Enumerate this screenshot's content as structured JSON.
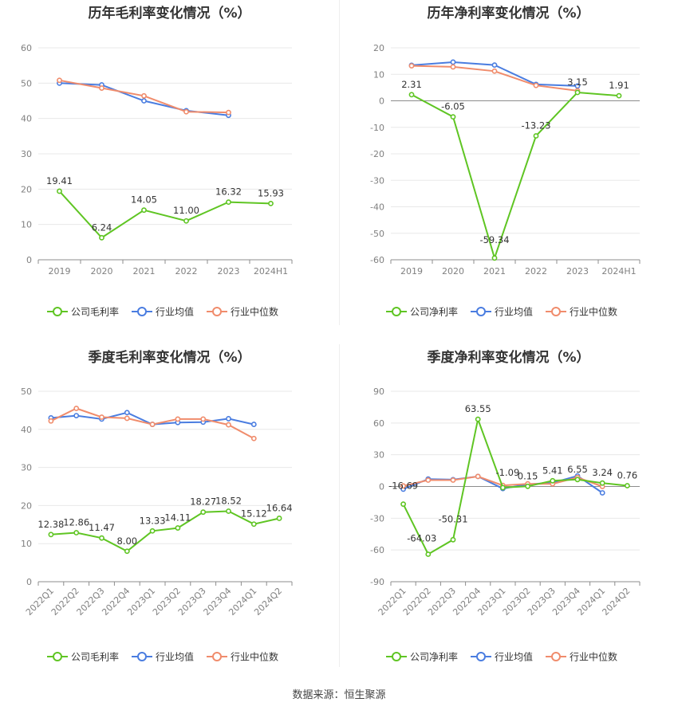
{
  "source_note": "数据来源：恒生聚源",
  "colors": {
    "company": "#5fc523",
    "avg": "#4a7de0",
    "median": "#f08c6c",
    "grid": "#e8e8e8",
    "axis": "#8c8c8c"
  },
  "legend_icon": "circle-line-icon",
  "chart_data": [
    {
      "id": "annual-gross",
      "type": "line",
      "title": "历年毛利率变化情况（%）",
      "categories": [
        "2019",
        "2020",
        "2021",
        "2022",
        "2023",
        "2024H1"
      ],
      "ylim": [
        0,
        60
      ],
      "yticks": [
        0,
        10,
        20,
        30,
        40,
        50,
        60
      ],
      "x_rotate": false,
      "grid": true,
      "legend_position": "bottom",
      "series": [
        {
          "key": "company",
          "name": "公司毛利率",
          "labeled": true,
          "values": [
            19.41,
            6.24,
            14.05,
            11.0,
            16.32,
            15.93
          ],
          "labels": [
            "19.41",
            "6.24",
            "14.05",
            "11.00",
            "16.32",
            "15.93"
          ]
        },
        {
          "key": "avg",
          "name": "行业均值",
          "labeled": false,
          "values": [
            50.0,
            49.5,
            45.0,
            42.2,
            40.9,
            null
          ]
        },
        {
          "key": "median",
          "name": "行业中位数",
          "labeled": false,
          "values": [
            50.8,
            48.6,
            46.4,
            41.9,
            41.7,
            null
          ]
        }
      ]
    },
    {
      "id": "annual-net",
      "type": "line",
      "title": "历年净利率变化情况（%）",
      "categories": [
        "2019",
        "2020",
        "2021",
        "2022",
        "2023",
        "2024H1"
      ],
      "ylim": [
        -60,
        20
      ],
      "yticks": [
        -60,
        -50,
        -40,
        -30,
        -20,
        -10,
        0,
        10,
        20
      ],
      "x_rotate": false,
      "grid": true,
      "legend_position": "bottom",
      "series": [
        {
          "key": "company",
          "name": "公司净利率",
          "labeled": true,
          "values": [
            2.31,
            -6.05,
            -59.34,
            -13.23,
            3.15,
            1.91
          ],
          "labels": [
            "2.31",
            "-6.05",
            "-59.34",
            "-13.23",
            "3.15",
            "1.91"
          ]
        },
        {
          "key": "avg",
          "name": "行业均值",
          "labeled": false,
          "values": [
            13.4,
            14.6,
            13.5,
            6.2,
            5.6,
            null
          ]
        },
        {
          "key": "median",
          "name": "行业中位数",
          "labeled": false,
          "values": [
            13.2,
            12.8,
            11.2,
            5.8,
            3.8,
            null
          ]
        }
      ]
    },
    {
      "id": "quarterly-gross",
      "type": "line",
      "title": "季度毛利率变化情况（%）",
      "categories": [
        "2022Q1",
        "2022Q2",
        "2022Q3",
        "2022Q4",
        "2023Q1",
        "2023Q2",
        "2023Q3",
        "2023Q4",
        "2024Q1",
        "2024Q2"
      ],
      "ylim": [
        0,
        50
      ],
      "yticks": [
        0,
        10,
        20,
        30,
        40,
        50
      ],
      "x_rotate": true,
      "grid": true,
      "legend_position": "bottom",
      "series": [
        {
          "key": "company",
          "name": "公司毛利率",
          "labeled": true,
          "values": [
            12.38,
            12.86,
            11.47,
            8.0,
            13.33,
            14.11,
            18.27,
            18.52,
            15.12,
            16.64
          ],
          "labels": [
            "12.38",
            "12.86",
            "11.47",
            "8.00",
            "13.33",
            "14.11",
            "18.27",
            "18.52",
            "15.12",
            "16.64"
          ]
        },
        {
          "key": "avg",
          "name": "行业均值",
          "labeled": false,
          "values": [
            43.0,
            43.6,
            42.7,
            44.4,
            41.3,
            41.8,
            41.9,
            42.8,
            41.3,
            null
          ]
        },
        {
          "key": "median",
          "name": "行业中位数",
          "labeled": false,
          "values": [
            42.2,
            45.5,
            43.2,
            42.9,
            41.3,
            42.7,
            42.7,
            41.2,
            37.6,
            null
          ]
        }
      ]
    },
    {
      "id": "quarterly-net",
      "type": "line",
      "title": "季度净利率变化情况（%）",
      "categories": [
        "2022Q1",
        "2022Q2",
        "2022Q3",
        "2022Q4",
        "2023Q1",
        "2023Q2",
        "2023Q3",
        "2023Q4",
        "2024Q1",
        "2024Q2"
      ],
      "ylim": [
        -90,
        90
      ],
      "yticks": [
        -90,
        -60,
        -30,
        0,
        30,
        60,
        90
      ],
      "x_rotate": true,
      "grid": true,
      "legend_position": "bottom",
      "series": [
        {
          "key": "company",
          "name": "公司净利率",
          "labeled": true,
          "values": [
            -16.69,
            -64.03,
            -50.31,
            63.55,
            -1.09,
            0.15,
            5.41,
            6.55,
            3.24,
            0.76
          ],
          "labels": [
            "-16.69",
            "-64.03",
            "-50.31",
            "63.55",
            "-1.09",
            "0.15",
            "5.41",
            "6.55",
            "3.24",
            "0.76"
          ]
        },
        {
          "key": "avg",
          "name": "行业均值",
          "labeled": false,
          "values": [
            -2.5,
            7.0,
            6.5,
            9.5,
            -2.0,
            2.0,
            3.5,
            10.0,
            -6.0,
            null
          ]
        },
        {
          "key": "median",
          "name": "行业中位数",
          "labeled": false,
          "values": [
            0.5,
            6.0,
            6.0,
            9.5,
            1.0,
            2.5,
            2.5,
            8.5,
            0.0,
            null
          ]
        }
      ]
    }
  ]
}
